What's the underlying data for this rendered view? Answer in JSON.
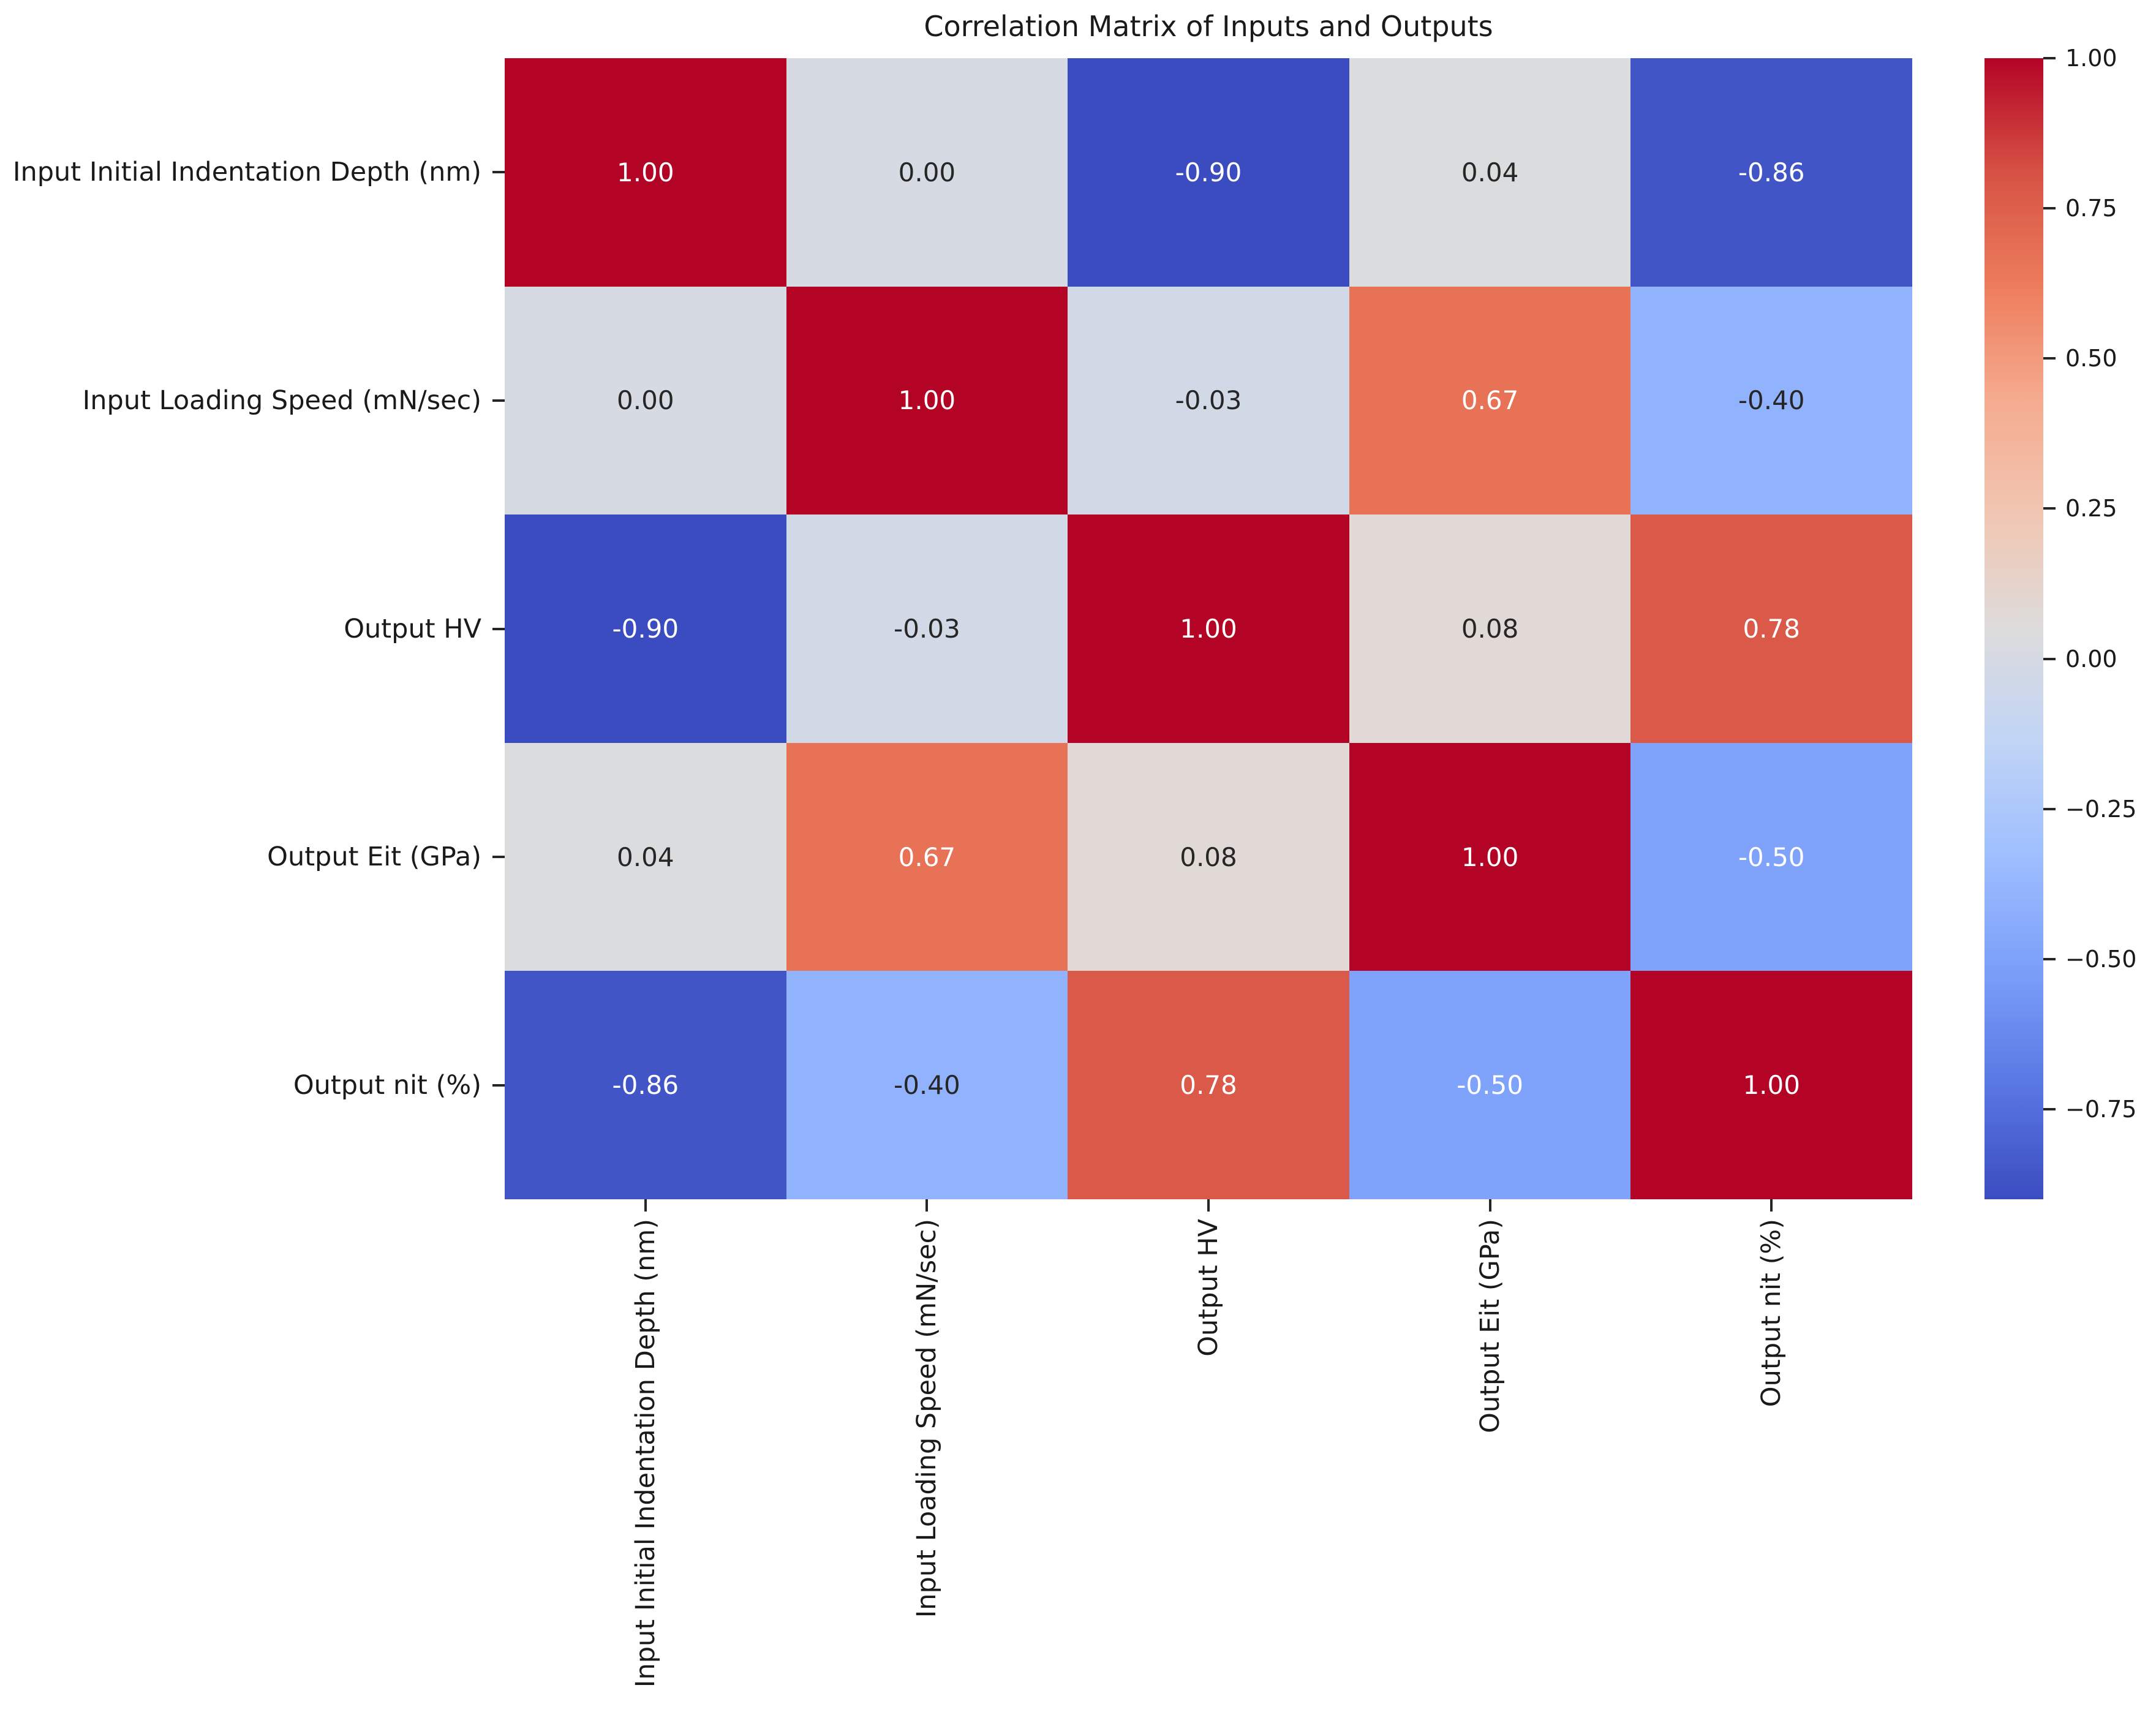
{
  "figure": {
    "title": "Correlation Matrix of Inputs and Outputs",
    "background_color": "#ffffff",
    "text_color": "#1a1a1a"
  },
  "chart_data": {
    "type": "heatmap",
    "title": "Correlation Matrix of Inputs and Outputs",
    "variables": [
      "Input Initial Indentation Depth (nm)",
      "Input Loading Speed (mN/sec)",
      "Output HV",
      "Output Eit (GPa)",
      "Output nit (%)"
    ],
    "matrix": [
      [
        1.0,
        0.0,
        -0.9,
        0.04,
        -0.86
      ],
      [
        0.0,
        1.0,
        -0.03,
        0.67,
        -0.4
      ],
      [
        -0.9,
        -0.03,
        1.0,
        0.08,
        0.78
      ],
      [
        0.04,
        0.67,
        0.08,
        1.0,
        -0.5
      ],
      [
        -0.86,
        -0.4,
        0.78,
        -0.5,
        1.0
      ]
    ],
    "value_format_decimals": 2,
    "colormap": "coolwarm",
    "vmin": -0.9,
    "vmax": 1.0,
    "colormap_anchors": [
      {
        "t": 0.0,
        "hex": "#3b4cc0"
      },
      {
        "t": 0.1,
        "hex": "#5977e3"
      },
      {
        "t": 0.2,
        "hex": "#7b9ff9"
      },
      {
        "t": 0.3,
        "hex": "#9ebeff"
      },
      {
        "t": 0.4,
        "hex": "#c0d4f5"
      },
      {
        "t": 0.5,
        "hex": "#dddcdc"
      },
      {
        "t": 0.6,
        "hex": "#f1c6b2"
      },
      {
        "t": 0.7,
        "hex": "#f5ab8f"
      },
      {
        "t": 0.8,
        "hex": "#ed7d5c"
      },
      {
        "t": 0.9,
        "hex": "#d65244"
      },
      {
        "t": 1.0,
        "hex": "#b40426"
      }
    ],
    "annotation_colors": {
      "dark": "#262626",
      "light": "#ffffff"
    },
    "colorbar": {
      "position": "right",
      "ticks": [
        {
          "value": 1.0,
          "label": "1.00"
        },
        {
          "value": 0.75,
          "label": "0.75"
        },
        {
          "value": 0.5,
          "label": "0.50"
        },
        {
          "value": 0.25,
          "label": "0.25"
        },
        {
          "value": 0.0,
          "label": "0.00"
        },
        {
          "value": -0.25,
          "label": "−0.25"
        },
        {
          "value": -0.5,
          "label": "−0.50"
        },
        {
          "value": -0.75,
          "label": "−0.75"
        }
      ]
    },
    "grid": false,
    "cell_borders": false
  }
}
